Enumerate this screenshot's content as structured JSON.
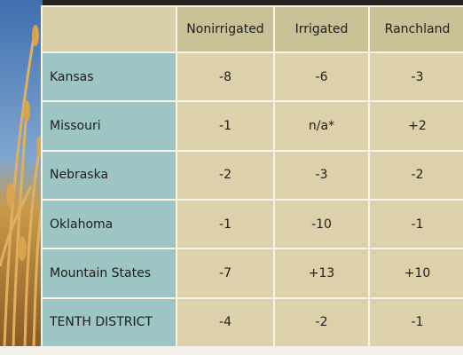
{
  "table": {
    "header": [
      "Nonirrigated",
      "Irrigated",
      "Ranchland"
    ],
    "rows": [
      [
        "Kansas",
        "-8",
        "-6",
        "-3"
      ],
      [
        "Missouri",
        "-1",
        "n/a*",
        "+2"
      ],
      [
        "Nebraska",
        "-2",
        "-3",
        "-2"
      ],
      [
        "Oklahoma",
        "-1",
        "-10",
        "-1"
      ],
      [
        "Mountain States",
        "-7",
        "+13",
        "+10"
      ],
      [
        "TENTH DISTRICT",
        "-4",
        "-2",
        "-1"
      ]
    ]
  }
}
